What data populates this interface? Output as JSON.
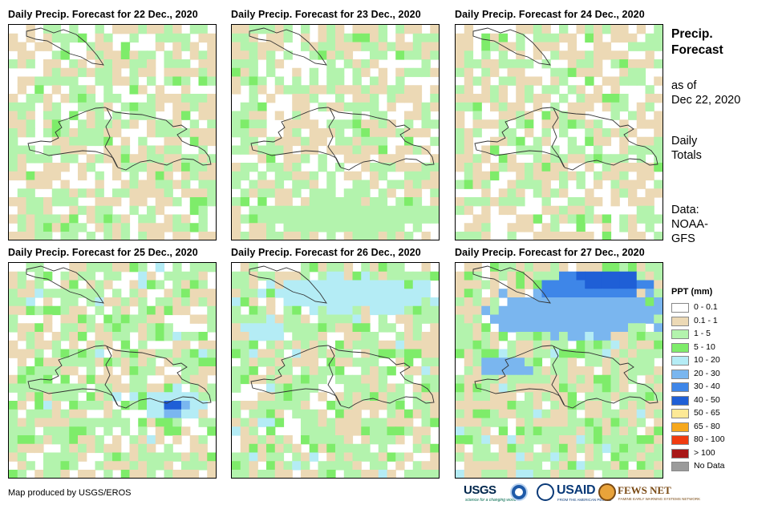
{
  "panels": [
    {
      "title": "Daily Precip. Forecast for 22 Dec., 2020"
    },
    {
      "title": "Daily Precip. Forecast for 23 Dec., 2020"
    },
    {
      "title": "Daily Precip. Forecast for 24 Dec., 2020"
    },
    {
      "title": "Daily Precip. Forecast for 25 Dec., 2020"
    },
    {
      "title": "Daily Precip. Forecast for 26 Dec., 2020"
    },
    {
      "title": "Daily Precip. Forecast for 27 Dec., 2020"
    }
  ],
  "sidebar": {
    "title_line1": "Precip.",
    "title_line2": "Forecast",
    "asof_line1": "as of",
    "asof_line2": "Dec 22, 2020",
    "totals_line1": "Daily",
    "totals_line2": "Totals",
    "data_line1": "Data:",
    "data_line2": "NOAA-",
    "data_line3": "GFS"
  },
  "legend": {
    "title": "PPT (mm)",
    "items": [
      {
        "label": "0 - 0.1",
        "color": "#ffffff"
      },
      {
        "label": "0.1 - 1",
        "color": "#ecd9b5"
      },
      {
        "label": "1 - 5",
        "color": "#b3f3ad"
      },
      {
        "label": "5 - 10",
        "color": "#7eec6a"
      },
      {
        "label": "10 - 20",
        "color": "#b4ecf5"
      },
      {
        "label": "20 - 30",
        "color": "#7ab6ef"
      },
      {
        "label": "30 - 40",
        "color": "#3e86e8"
      },
      {
        "label": "40 - 50",
        "color": "#1f5fd6"
      },
      {
        "label": "50 - 65",
        "color": "#fde996"
      },
      {
        "label": "65 - 80",
        "color": "#f6a81c"
      },
      {
        "label": "80 - 100",
        "color": "#f03c10"
      },
      {
        "label": "> 100",
        "color": "#a81818"
      },
      {
        "label": "No Data",
        "color": "#9b9b9b"
      }
    ]
  },
  "credit": "Map produced by USGS/EROS",
  "logos": {
    "usgs": "USGS",
    "usgs_tag": "science for a changing world",
    "usaid": "USAID",
    "usaid_tag": "FROM THE AMERICAN PEOPLE",
    "fews": "FEWS NET",
    "fews_tag": "FAMINE EARLY WARNING SYSTEMS NETWORK"
  }
}
